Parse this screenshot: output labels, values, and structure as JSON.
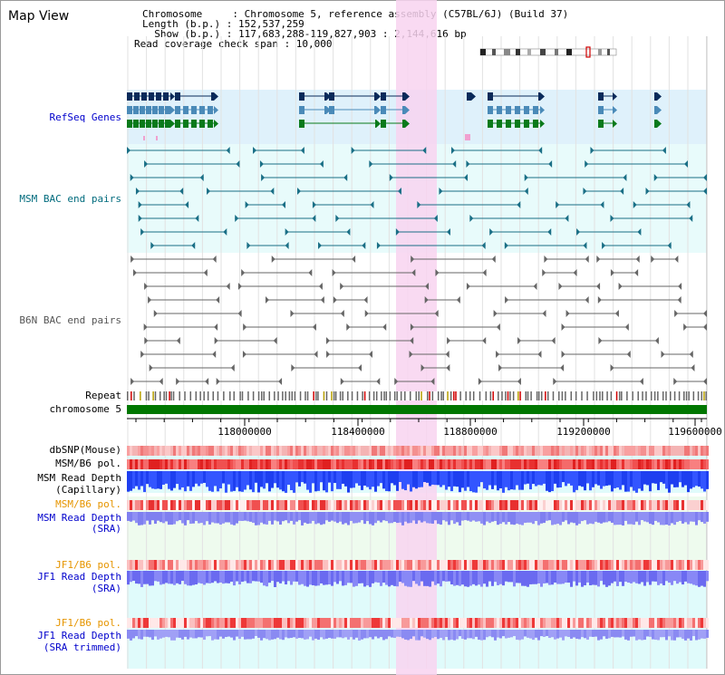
{
  "title": "Map View",
  "info": {
    "chromosome": "Chromosome     : Chromosome 5, reference assembly (C57BL/6J) (Build 37)",
    "length": "Length (b.p.) : 152,537,259",
    "show": "  Show (b.p.) : 117,683,288-119,827,903 : 2,144,616 bp",
    "span": "Read coverage check span : 10,000"
  },
  "tracks": {
    "refseq": "RefSeq Genes",
    "msm_bac": "MSM BAC end pairs",
    "b6n_bac": "B6N BAC end pairs",
    "repeat": "Repeat",
    "chromosome": "chromosome 5",
    "dbsnp": "dbSNP(Mouse)",
    "msm_b6_pol_1": "MSM/B6 pol.",
    "msm_depth_cap_1": "MSM Read Depth",
    "msm_depth_cap_2": "(Capillary)",
    "msm_b6_pol_2": "MSM/B6 pol.",
    "msm_depth_sra_1": "MSM Read Depth",
    "msm_depth_sra_2": "(SRA)",
    "jf1_b6_pol_1": "JF1/B6 pol.",
    "jf1_depth_sra_1": "JF1 Read Depth",
    "jf1_depth_sra_2": "(SRA)",
    "jf1_b6_pol_2": "JF1/B6 pol.",
    "jf1_depth_trim_1": "JF1 Read Depth",
    "jf1_depth_trim_2": "(SRA trimmed)"
  },
  "axis_ticks": [
    "118000000",
    "118400000",
    "118800000",
    "119200000",
    "119600000"
  ],
  "colors": {
    "label_blue": "#0000cc",
    "label_teal": "#006b7d",
    "label_gray": "#555555",
    "label_orange": "#e69500",
    "highlight": "#f8d4f0",
    "refseq_bg": "#dff1fb",
    "bac_bg": "#e8fbfb",
    "cyan_bg": "#e0fbfb",
    "green_bg": "#eefbee",
    "chrom_bar": "#007700",
    "gene_navy": "#0a2a5a",
    "gene_steel": "#4a8ab8",
    "gene_green": "#0a7a1a"
  }
}
